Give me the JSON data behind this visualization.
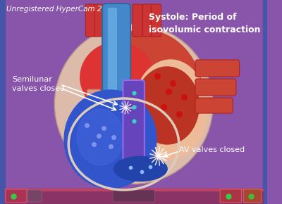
{
  "bg_color": "#8855aa",
  "left_border_color": "#5566bb",
  "right_border_color": "#5566bb",
  "title_text": "Unregistered HyperCam 2",
  "title_color": "#ffffff",
  "title_fontsize": 7.5,
  "label1_text": "Systole: Period of\nisovolumic contraction",
  "label1_color": "#ffffff",
  "label1_fontsize": 9,
  "label2_text": "Semilunar\nvalves closed",
  "label2_color": "#ffffff",
  "label2_fontsize": 8,
  "label3_text": "AV valves closed",
  "label3_color": "#ffffff",
  "label3_fontsize": 8,
  "taskbar_color": "#883366",
  "taskbar_border_color": "#bb4466",
  "fig_width": 4.0,
  "fig_height": 2.9,
  "heart_pericardium": "#cc9988",
  "heart_red_left": "#cc3333",
  "heart_red_right": "#bb4433",
  "heart_pink": "#ddaaaa",
  "lv_blue": "#2244aa",
  "aorta_blue": "#4488cc",
  "aorta_dark": "#336699",
  "septum_purple": "#7755cc",
  "rv_dark_blue": "#334499",
  "small_vessel_red": "#cc4444"
}
